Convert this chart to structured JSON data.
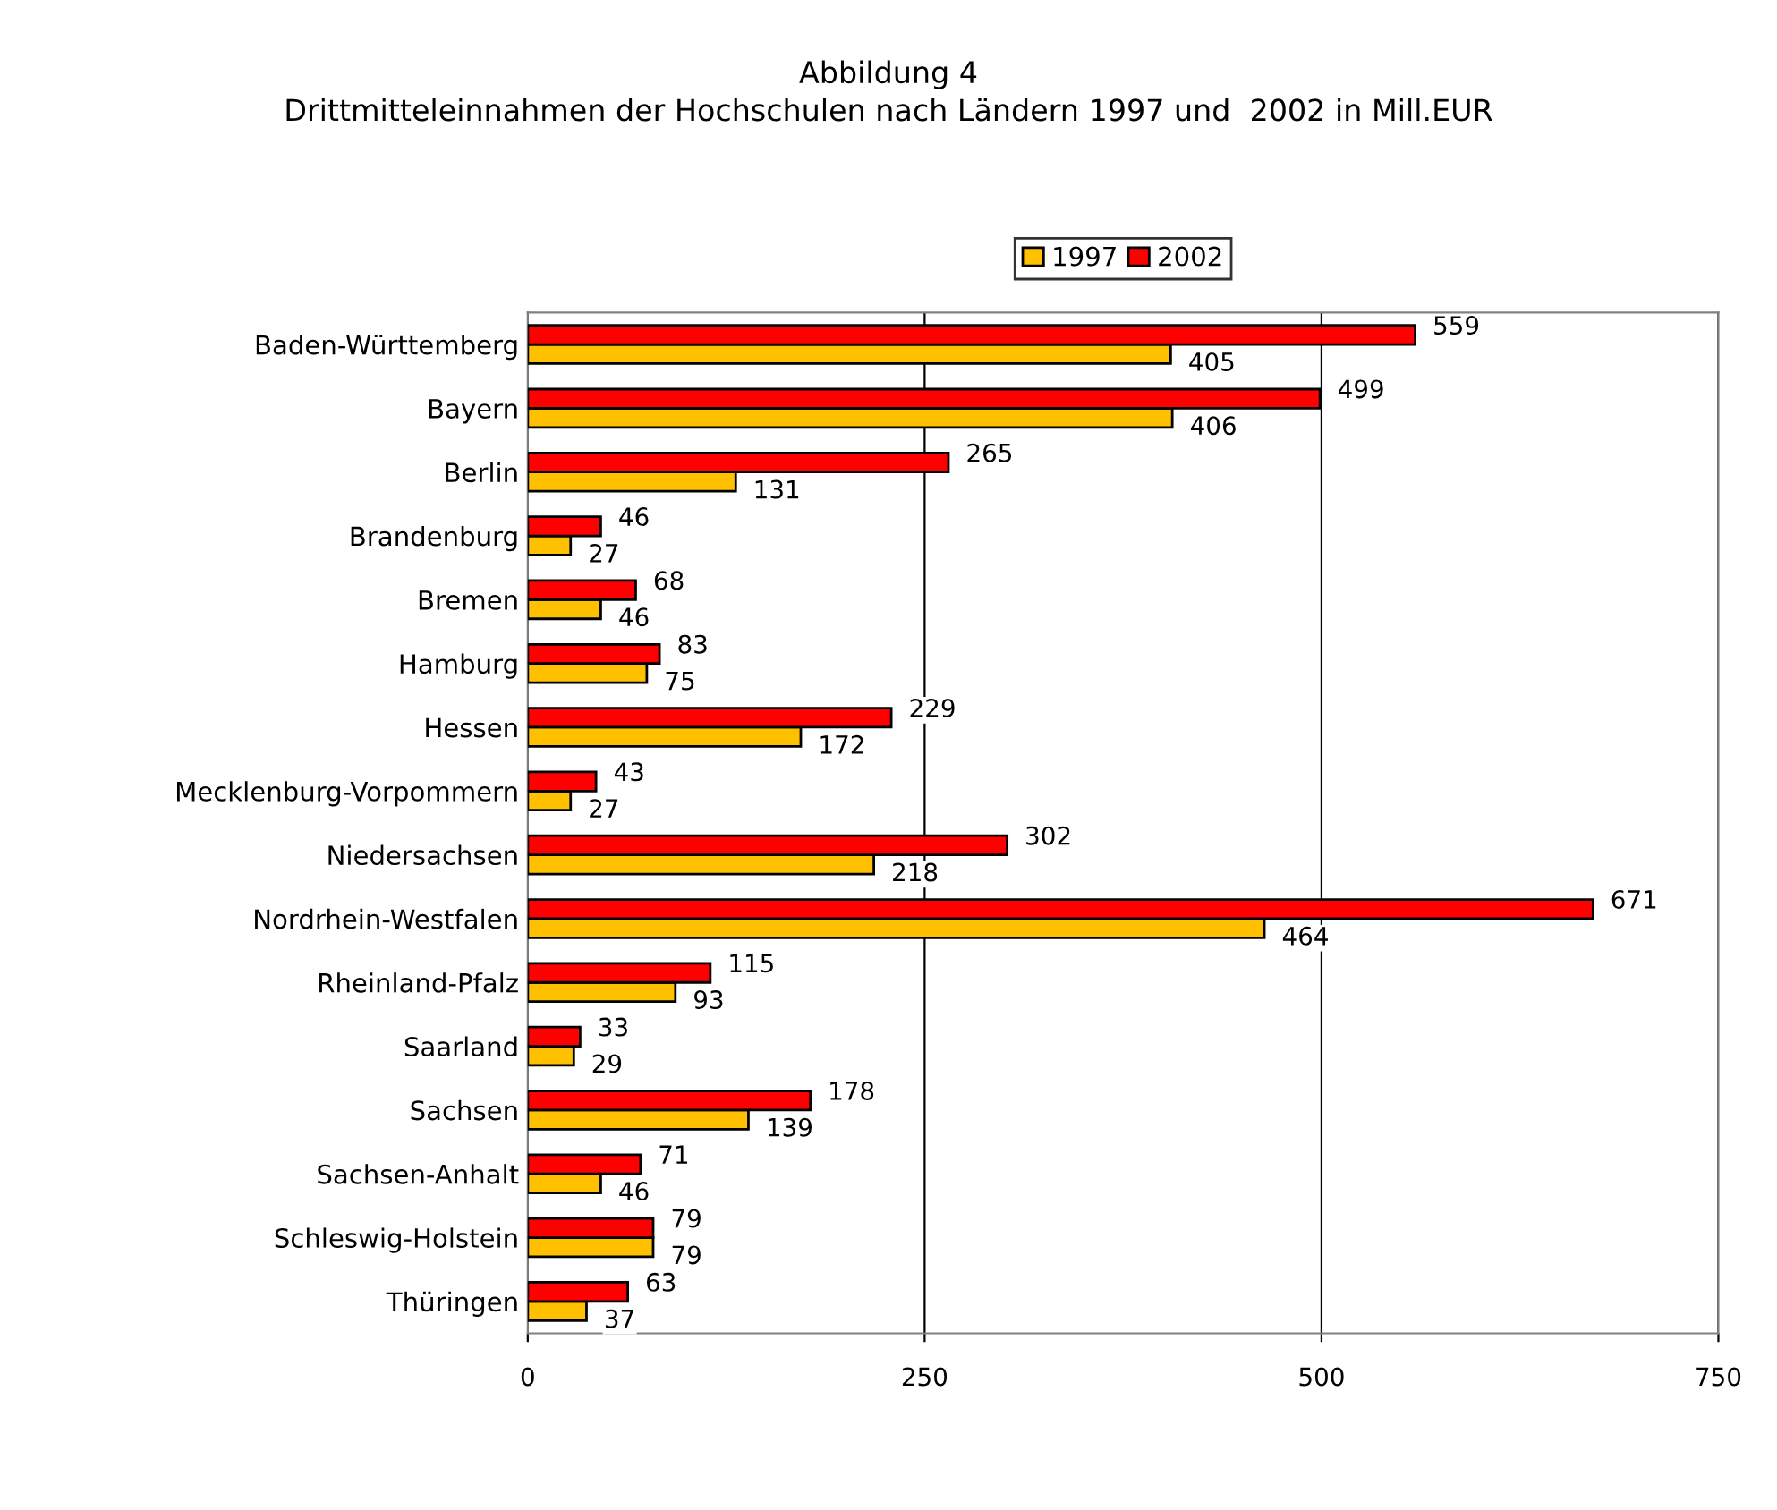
{
  "chart_data": {
    "type": "bar",
    "orientation": "horizontal",
    "title": "Abbildung 4",
    "subtitle": "Drittmitteleinnahmen der Hochschulen nach Ländern 1997 und  2002 in Mill.EUR",
    "categories": [
      "Baden-Württemberg",
      "Bayern",
      "Berlin",
      "Brandenburg",
      "Bremen",
      "Hamburg",
      "Hessen",
      "Mecklenburg-Vorpommern",
      "Niedersachsen",
      "Nordrhein-Westfalen",
      "Rheinland-Pfalz",
      "Saarland",
      "Sachsen",
      "Sachsen-Anhalt",
      "Schleswig-Holstein",
      "Thüringen"
    ],
    "series": [
      {
        "name": "1997",
        "color": "#ffc000",
        "values": [
          405,
          406,
          131,
          27,
          46,
          75,
          172,
          27,
          218,
          464,
          93,
          29,
          139,
          46,
          79,
          37
        ]
      },
      {
        "name": "2002",
        "color": "#ff0000",
        "values": [
          559,
          499,
          265,
          46,
          68,
          83,
          229,
          43,
          302,
          671,
          115,
          33,
          178,
          71,
          79,
          63
        ]
      }
    ],
    "xlim": [
      0,
      750
    ],
    "xticks": [
      0,
      250,
      500,
      750
    ],
    "grid": "x",
    "legend": "top",
    "data_labels": true
  }
}
